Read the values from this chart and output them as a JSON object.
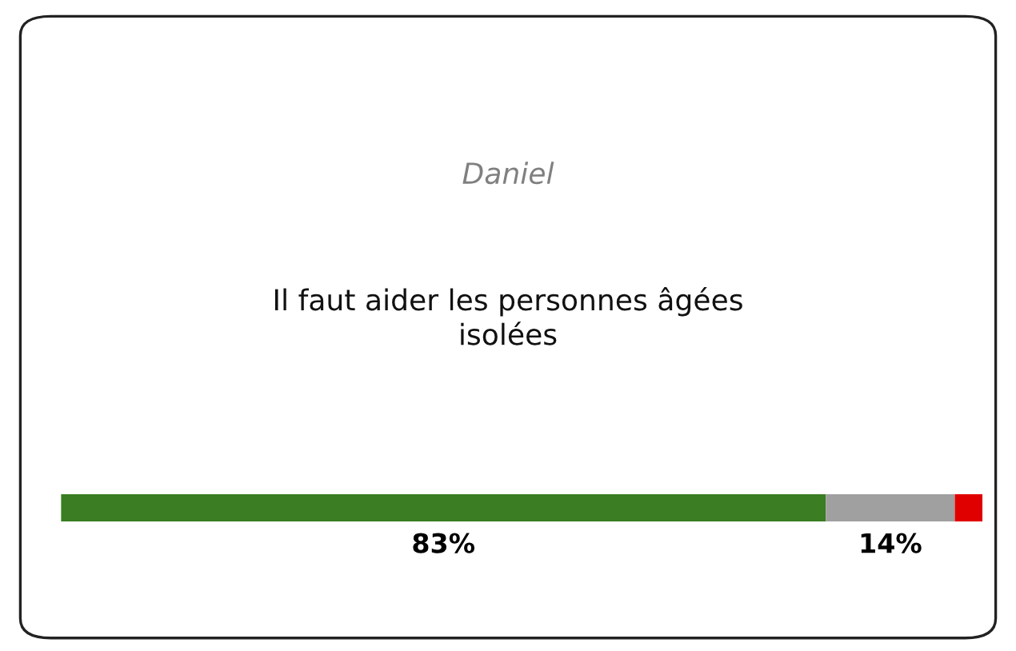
{
  "chart_data": {
    "type": "bar",
    "orientation": "horizontal",
    "stacked": true,
    "title": "Daniel",
    "subtitle": "Il faut aider les personnes âgées\nisolées",
    "categories": [
      null
    ],
    "xlim": [
      0,
      100
    ],
    "series": [
      {
        "color": "#3a7d22",
        "values": [
          83
        ],
        "value_labels": [
          "83%"
        ]
      },
      {
        "color": "#a0a0a0",
        "values": [
          14
        ],
        "value_labels": [
          "14%"
        ]
      },
      {
        "color": "#e00000",
        "values": [
          3
        ],
        "value_labels": [
          null
        ]
      }
    ]
  }
}
